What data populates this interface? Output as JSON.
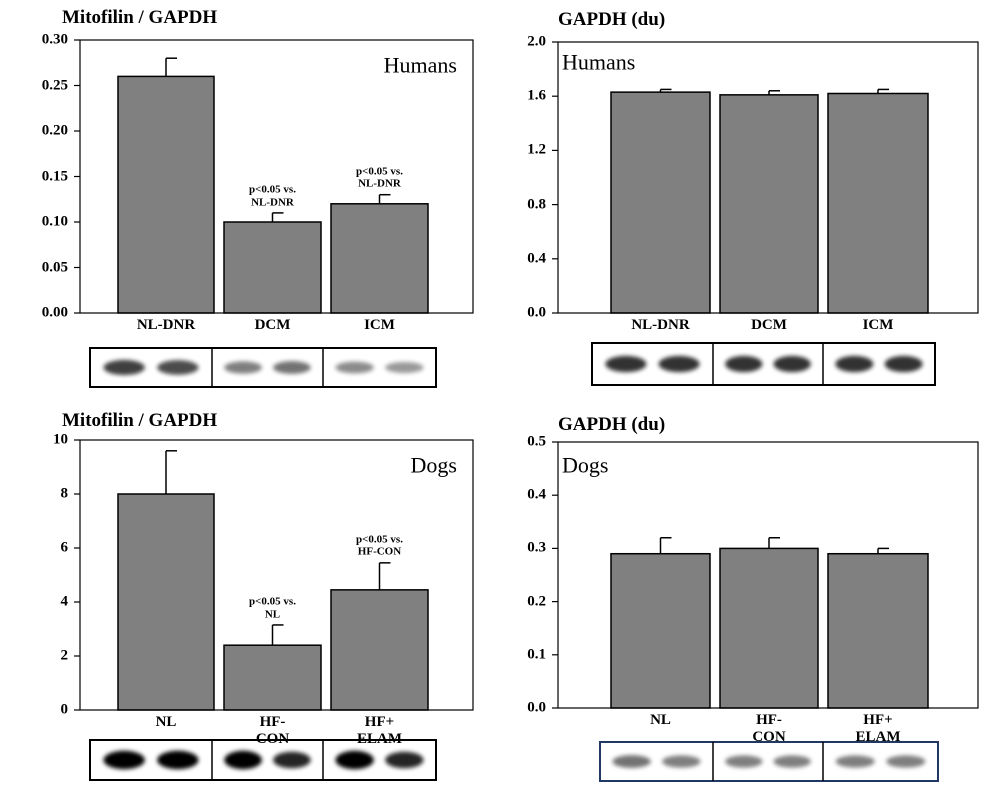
{
  "chart_data": [
    {
      "type": "bar",
      "title": "Mitofilin / GAPDH",
      "subtitle": "Humans",
      "categories": [
        "NL-DNR",
        "DCM",
        "ICM"
      ],
      "values": [
        0.26,
        0.1,
        0.12
      ],
      "errors": [
        0.02,
        0.01,
        0.01
      ],
      "annotations": [
        null,
        "p<0.05 vs.\nNL-DNR",
        "p<0.05 vs.\nNL-DNR"
      ],
      "color": "#808080",
      "ylim": [
        0,
        0.3
      ],
      "yticks": [
        {
          "value": 0,
          "label": "0.00"
        },
        0.05,
        {
          "value": 0.1,
          "label": "0.10"
        },
        0.15,
        {
          "value": 0.2,
          "label": "0.20"
        },
        0.25,
        {
          "value": 0.3,
          "label": "0.30"
        }
      ]
    },
    {
      "type": "bar",
      "title": "GAPDH (du)",
      "subtitle": "Humans",
      "categories": [
        "NL-DNR",
        "DCM",
        "ICM"
      ],
      "values": [
        1.63,
        1.61,
        1.62
      ],
      "errors": [
        0.02,
        0.03,
        0.03
      ],
      "annotations": [
        null,
        null,
        null
      ],
      "color": "#808080",
      "ylim": [
        0,
        2.0
      ],
      "yticks": [
        {
          "value": 0,
          "label": "0.0"
        },
        0.4,
        0.8,
        1.2,
        1.6,
        {
          "value": 2,
          "label": "2.0"
        }
      ]
    },
    {
      "type": "bar",
      "title": "Mitofilin / GAPDH",
      "subtitle": "Dogs",
      "categories": [
        "NL",
        "HF-\nCON",
        "HF+\nELAM"
      ],
      "values": [
        8.0,
        2.4,
        4.45
      ],
      "errors": [
        1.6,
        0.75,
        1.0
      ],
      "annotations": [
        null,
        "p<0.05 vs.\nNL",
        "p<0.05 vs.\nHF-CON"
      ],
      "color": "#808080",
      "ylim": [
        0,
        10
      ],
      "yticks": [
        0,
        2,
        4,
        6,
        8,
        10
      ]
    },
    {
      "type": "bar",
      "title": "GAPDH (du)",
      "subtitle": "Dogs",
      "categories": [
        "NL",
        "HF-\nCON",
        "HF+\nELAM"
      ],
      "values": [
        0.29,
        0.3,
        0.29
      ],
      "errors": [
        0.03,
        0.02,
        0.01
      ],
      "annotations": [
        null,
        null,
        null
      ],
      "color": "#808080",
      "ylim": [
        0,
        0.5
      ],
      "yticks": [
        {
          "value": 0,
          "label": "0.0"
        },
        0.1,
        0.2,
        0.3,
        0.4,
        0.5
      ]
    }
  ]
}
